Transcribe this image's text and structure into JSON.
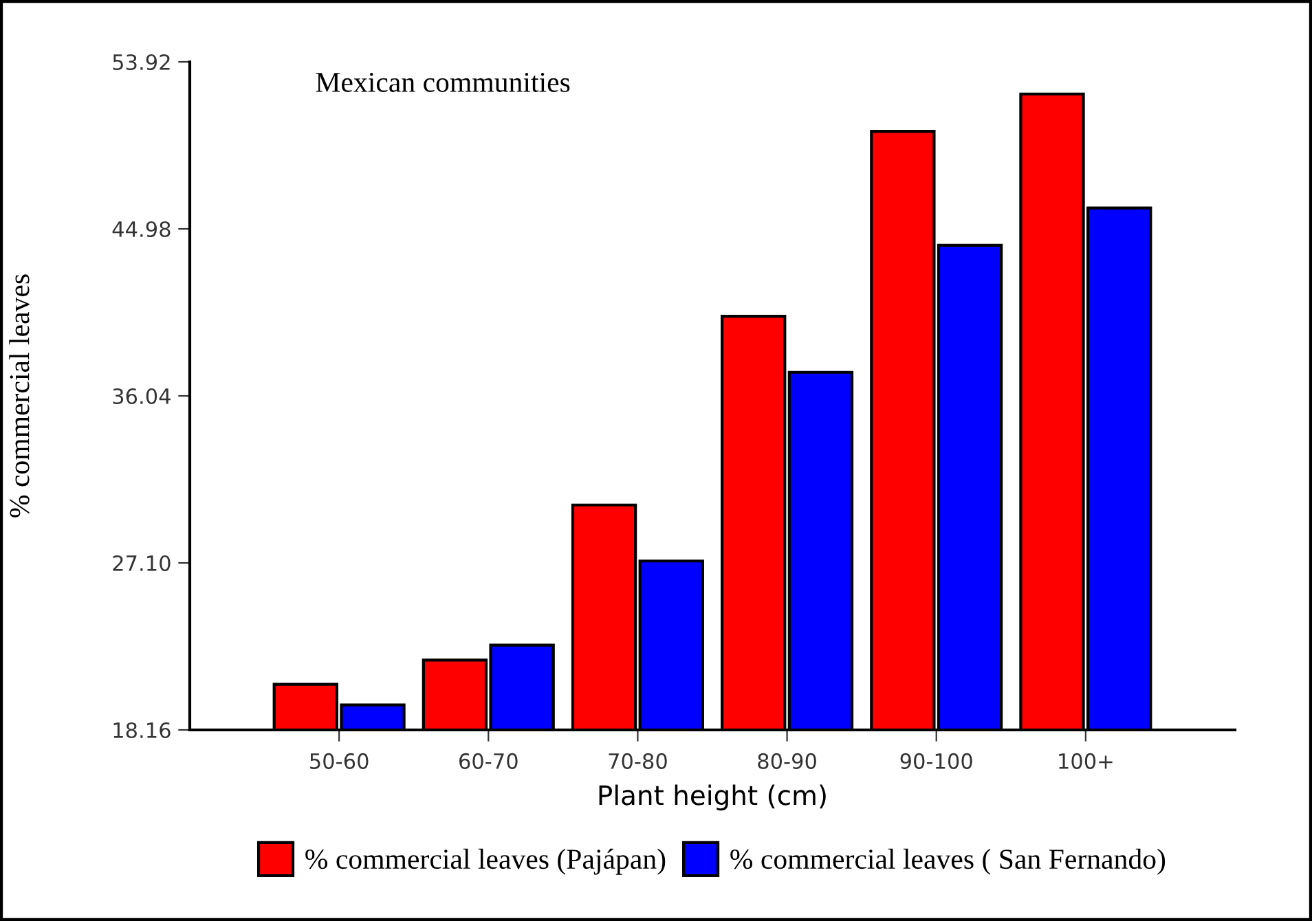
{
  "chart_data": {
    "type": "bar",
    "title": "Mexican communities",
    "xlabel": "Plant height (cm)",
    "ylabel": "% commercial leaves",
    "categories": [
      "50-60",
      "60-70",
      "70-80",
      "80-90",
      "90-100",
      "100+"
    ],
    "series": [
      {
        "name": "% commercial leaves (Pajápan)",
        "color": "#ff0000",
        "values": [
          20.6,
          21.9,
          30.2,
          40.3,
          50.2,
          52.2
        ]
      },
      {
        "name": "% commercial leaves ( San Fernando)",
        "color": "#0000ff",
        "values": [
          19.5,
          22.7,
          27.2,
          37.3,
          44.1,
          46.1
        ]
      }
    ],
    "ylim": [
      18.16,
      53.92
    ],
    "yticks": [
      {
        "value": 18.16,
        "label": "18.16"
      },
      {
        "value": 27.1,
        "label": "27.10"
      },
      {
        "value": 36.04,
        "label": "36.04"
      },
      {
        "value": 44.98,
        "label": "44.98"
      },
      {
        "value": 53.92,
        "label": "53.92"
      }
    ],
    "grid": false,
    "legend": "bottom"
  }
}
